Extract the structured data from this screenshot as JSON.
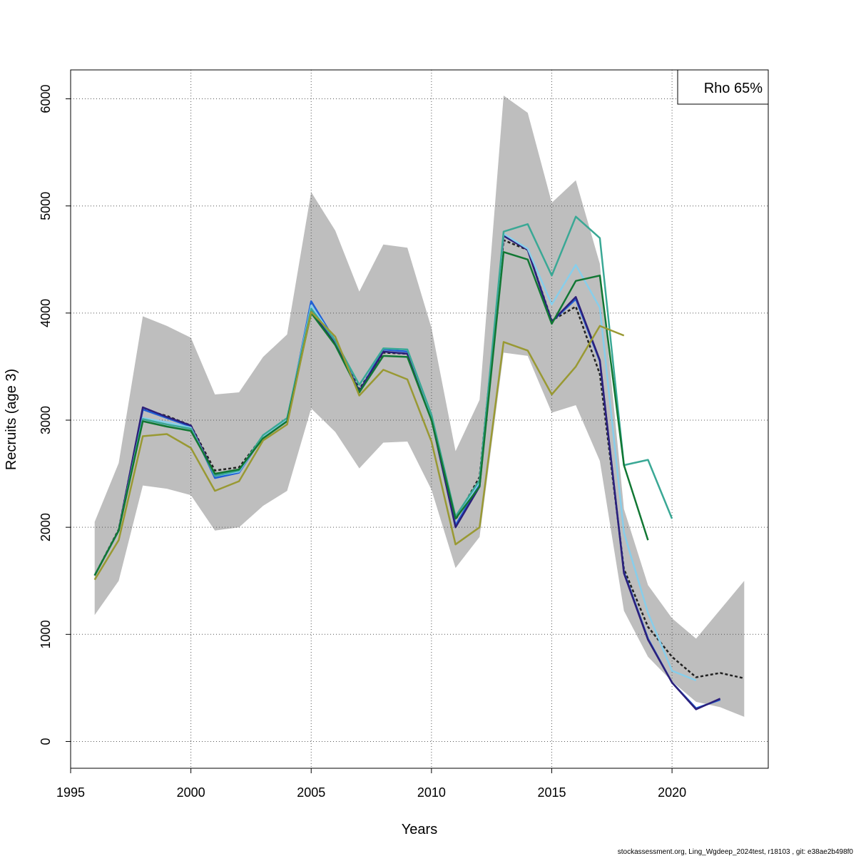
{
  "chart_data": {
    "type": "line",
    "xlabel": "Years",
    "ylabel": "Recruits (age 3)",
    "xlim": [
      1995,
      2024
    ],
    "ylim": [
      -250,
      6270
    ],
    "x_ticks": [
      1995,
      2000,
      2005,
      2010,
      2015,
      2020
    ],
    "y_ticks": [
      0,
      1000,
      2000,
      3000,
      4000,
      5000,
      6000
    ],
    "grid": true,
    "legend": {
      "position": "top-right",
      "text": "Rho 65%"
    },
    "footer": "stockassessment.org, Ling_Wgdeep_2024test, r18103 , git: e38ae2b498f0",
    "ci_band": {
      "color": "#bebebe",
      "x": [
        1996,
        1997,
        1998,
        1999,
        2000,
        2001,
        2002,
        2003,
        2004,
        2005,
        2006,
        2007,
        2008,
        2009,
        2010,
        2011,
        2012,
        2013,
        2014,
        2015,
        2016,
        2017,
        2018,
        2019,
        2020,
        2021,
        2022,
        2023
      ],
      "lower": [
        1180,
        1500,
        2390,
        2360,
        2300,
        1970,
        2000,
        2200,
        2340,
        3110,
        2890,
        2550,
        2790,
        2800,
        2350,
        1620,
        1910,
        3630,
        3600,
        3070,
        3140,
        2620,
        1220,
        790,
        560,
        370,
        320,
        230
      ],
      "upper": [
        2050,
        2600,
        3970,
        3880,
        3770,
        3240,
        3260,
        3590,
        3800,
        5130,
        4770,
        4200,
        4640,
        4610,
        3860,
        2710,
        3190,
        6030,
        5870,
        5030,
        5240,
        4460,
        2170,
        1460,
        1150,
        960,
        1230,
        1500
      ]
    },
    "series": [
      {
        "color": "#222222",
        "dashed": true,
        "x": [
          1996,
          1997,
          1998,
          1999,
          2000,
          2001,
          2002,
          2003,
          2004,
          2005,
          2006,
          2007,
          2008,
          2009,
          2010,
          2011,
          2012,
          2013,
          2014,
          2015,
          2016,
          2017,
          2018,
          2019,
          2020,
          2021,
          2022,
          2023
        ],
        "values": [
          1550,
          1980,
          3100,
          3040,
          2950,
          2530,
          2560,
          2850,
          3010,
          4040,
          3740,
          3290,
          3630,
          3620,
          3020,
          2070,
          2470,
          4680,
          4590,
          3930,
          4060,
          3430,
          1610,
          1070,
          790,
          600,
          640,
          590
        ]
      },
      {
        "color": "#1f5fd6",
        "x": [
          1996,
          1997,
          1998,
          1999,
          2000,
          2001,
          2002,
          2003,
          2004,
          2005,
          2006,
          2007,
          2008,
          2009,
          2010,
          2011,
          2012,
          2013,
          2014,
          2015,
          2016,
          2017,
          2018,
          2019,
          2020,
          2021,
          2022
        ],
        "values": [
          1550,
          1970,
          3100,
          3020,
          2940,
          2460,
          2510,
          2850,
          2990,
          4110,
          3740,
          3270,
          3660,
          3640,
          3030,
          2020,
          2400,
          4730,
          4590,
          3920,
          4130,
          3550,
          1580,
          960,
          550,
          310,
          390
        ]
      },
      {
        "color": "#2c1f7a",
        "x": [
          1996,
          1997,
          1998,
          1999,
          2000,
          2001,
          2002,
          2003,
          2004,
          2005,
          2006,
          2007,
          2008,
          2009,
          2010,
          2011,
          2012,
          2013,
          2014,
          2015,
          2016,
          2017,
          2018,
          2019,
          2020,
          2021,
          2022
        ],
        "values": [
          1550,
          1970,
          3120,
          3030,
          2950,
          2490,
          2530,
          2840,
          2990,
          4020,
          3720,
          3270,
          3640,
          3620,
          3010,
          2000,
          2380,
          4720,
          4590,
          3920,
          4150,
          3560,
          1570,
          950,
          550,
          300,
          400
        ]
      },
      {
        "color": "#87ceeb",
        "x": [
          1996,
          1997,
          1998,
          1999,
          2000,
          2001,
          2002,
          2003,
          2004,
          2005,
          2006,
          2007,
          2008,
          2009,
          2010,
          2011,
          2012,
          2013,
          2014,
          2015,
          2016,
          2017,
          2018,
          2019,
          2020,
          2021
        ],
        "values": [
          1550,
          1970,
          3020,
          2980,
          2930,
          2480,
          2520,
          2850,
          3010,
          4070,
          3740,
          3330,
          3670,
          3660,
          3040,
          2090,
          2420,
          4740,
          4600,
          4080,
          4450,
          4050,
          1950,
          1200,
          660,
          570
        ]
      },
      {
        "color": "#3aa895",
        "x": [
          1996,
          1997,
          1998,
          1999,
          2000,
          2001,
          2002,
          2003,
          2004,
          2005,
          2006,
          2007,
          2008,
          2009,
          2010,
          2011,
          2012,
          2013,
          2014,
          2015,
          2016,
          2017,
          2018,
          2019,
          2020
        ],
        "values": [
          1550,
          1970,
          3010,
          2960,
          2920,
          2480,
          2530,
          2860,
          3020,
          4040,
          3740,
          3330,
          3670,
          3660,
          3050,
          2100,
          2440,
          4760,
          4830,
          4350,
          4900,
          4700,
          2580,
          2630,
          2080
        ]
      },
      {
        "color": "#117733",
        "x": [
          1996,
          1997,
          1998,
          1999,
          2000,
          2001,
          2002,
          2003,
          2004,
          2005,
          2006,
          2007,
          2008,
          2009,
          2010,
          2011,
          2012,
          2013,
          2014,
          2015,
          2016,
          2017,
          2018,
          2019
        ],
        "values": [
          1550,
          1970,
          2990,
          2940,
          2900,
          2500,
          2540,
          2830,
          2990,
          4000,
          3700,
          3260,
          3600,
          3590,
          3000,
          2080,
          2380,
          4570,
          4500,
          3900,
          4300,
          4350,
          2580,
          1880
        ]
      },
      {
        "color": "#999933",
        "x": [
          1996,
          1997,
          1998,
          1999,
          2000,
          2001,
          2002,
          2003,
          2004,
          2005,
          2006,
          2007,
          2008,
          2009,
          2010,
          2011,
          2012,
          2013,
          2014,
          2015,
          2016,
          2017,
          2018
        ],
        "values": [
          1510,
          1880,
          2850,
          2870,
          2740,
          2340,
          2430,
          2810,
          2960,
          4010,
          3780,
          3230,
          3470,
          3380,
          2800,
          1840,
          2000,
          3730,
          3650,
          3240,
          3500,
          3880,
          3790
        ]
      }
    ]
  }
}
